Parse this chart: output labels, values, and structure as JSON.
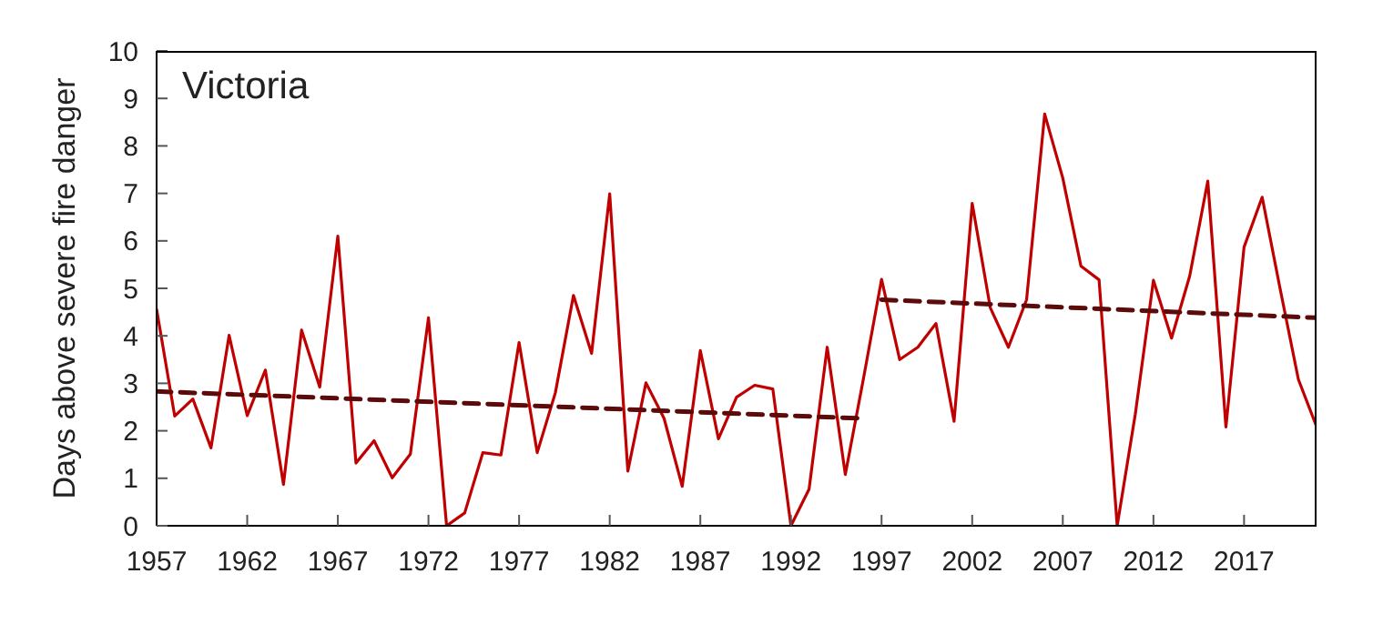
{
  "chart_data": {
    "type": "line",
    "title": "Victoria",
    "ylabel": "Days above severe fire danger",
    "x": [
      1957,
      1958,
      1959,
      1960,
      1961,
      1962,
      1963,
      1964,
      1965,
      1966,
      1967,
      1968,
      1969,
      1970,
      1971,
      1972,
      1973,
      1974,
      1975,
      1976,
      1977,
      1978,
      1979,
      1980,
      1981,
      1982,
      1983,
      1984,
      1985,
      1986,
      1987,
      1988,
      1989,
      1990,
      1991,
      1992,
      1993,
      1994,
      1995,
      1996,
      1997,
      1998,
      1999,
      2000,
      2001,
      2002,
      2003,
      2004,
      2005,
      2006,
      2007,
      2008,
      2009,
      2010,
      2011,
      2012,
      2013,
      2014,
      2015,
      2016,
      2017,
      2018,
      2019,
      2020,
      2021
    ],
    "series": [
      {
        "color": "#c00000",
        "line_style": "solid",
        "values": [
          4.56,
          2.31,
          2.67,
          1.64,
          4.01,
          2.32,
          3.28,
          0.87,
          4.12,
          2.92,
          6.1,
          1.32,
          1.79,
          1.01,
          1.51,
          4.38,
          0,
          0.27,
          1.54,
          1.49,
          3.86,
          1.54,
          2.8,
          4.85,
          3.63,
          6.99,
          1.15,
          3.01,
          2.26,
          0.83,
          3.69,
          1.83,
          2.71,
          2.96,
          2.88,
          0,
          0.77,
          3.76,
          1.08,
          3.1,
          5.19,
          3.5,
          3.76,
          4.26,
          2.2,
          6.79,
          4.59,
          3.76,
          4.76,
          8.67,
          7.32,
          5.47,
          5.18,
          0,
          2.35,
          5.17,
          3.95,
          5.26,
          7.26,
          2.08,
          5.87,
          6.92,
          4.97,
          3.08,
          2.09
        ]
      },
      {
        "type": "line",
        "color": "#5c0a0a",
        "line_style": "dashed",
        "x": [
          1957,
          1996
        ],
        "values": [
          2.83,
          2.26
        ]
      },
      {
        "type": "line",
        "color": "#5c0a0a",
        "line_style": "dashed",
        "x": [
          1997,
          2021
        ],
        "values": [
          4.76,
          4.38
        ]
      }
    ],
    "xlim": [
      1957,
      2021
    ],
    "xticks": [
      1957,
      1962,
      1967,
      1972,
      1977,
      1982,
      1987,
      1992,
      1997,
      2002,
      2007,
      2012,
      2017
    ],
    "ylim": [
      0,
      10
    ],
    "yticks": [
      0,
      1,
      2,
      3,
      4,
      5,
      6,
      7,
      8,
      9,
      10
    ],
    "grid": false,
    "marker": "none"
  }
}
